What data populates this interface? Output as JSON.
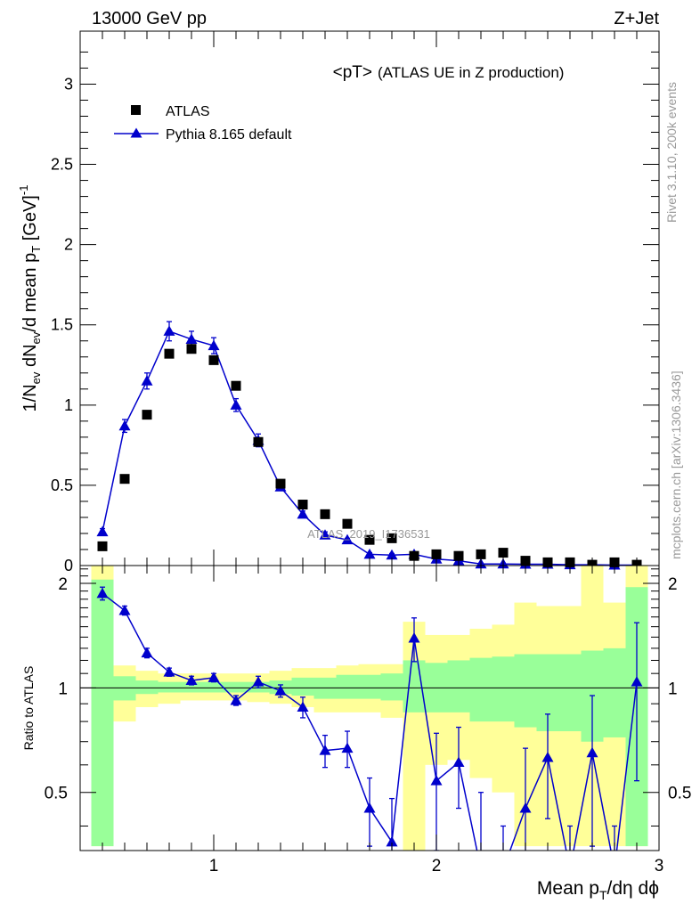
{
  "header": {
    "left": "13000 GeV pp",
    "right": "Z+Jet"
  },
  "side_text": {
    "rivet": "Rivet 3.1.10,  200k events",
    "mcplots": "mcplots.cern.ch [arXiv:1306.3436]"
  },
  "watermark": "ATLAS_2019_I1736531",
  "colors": {
    "mc": "#0000cc",
    "band_inner": "#99ff99",
    "band_outer": "#ffff99",
    "data": "#000000"
  },
  "chart_data": [
    {
      "type": "scatter",
      "title": "<pT>",
      "subtitle": "(ATLAS UE in Z production)",
      "xlabel": "Mean p_T/dη dϕ",
      "ylabel": "1/N_ev dN_ev/d mean p_T [GeV]^-1",
      "xlim": [
        0.4,
        3.0
      ],
      "ylim": [
        0,
        3.33
      ],
      "yticks": [
        0,
        0.5,
        1,
        1.5,
        2,
        2.5,
        3
      ],
      "yticks_labels": [
        "0",
        "0.5",
        "1",
        "1.5",
        "2",
        "2.5",
        "3"
      ],
      "legend_placement": "top-left",
      "series": [
        {
          "name": "ATLAS",
          "marker": "square",
          "x": [
            0.5,
            0.6,
            0.7,
            0.8,
            0.9,
            1.0,
            1.1,
            1.2,
            1.3,
            1.4,
            1.5,
            1.6,
            1.7,
            1.8,
            1.9,
            2.0,
            2.1,
            2.2,
            2.3,
            2.4,
            2.5,
            2.6,
            2.7,
            2.8,
            2.9
          ],
          "y": [
            0.12,
            0.54,
            0.94,
            1.32,
            1.35,
            1.28,
            1.12,
            0.77,
            0.51,
            0.38,
            0.32,
            0.26,
            0.16,
            0.17,
            0.06,
            0.07,
            0.06,
            0.07,
            0.08,
            0.03,
            0.02,
            0.02,
            0.005,
            0.02,
            0.005
          ]
        },
        {
          "name": "Pythia 8.165 default",
          "marker": "triangle",
          "x": [
            0.5,
            0.6,
            0.7,
            0.8,
            0.9,
            1.0,
            1.1,
            1.2,
            1.3,
            1.4,
            1.5,
            1.6,
            1.7,
            1.8,
            1.9,
            2.0,
            2.1,
            2.2,
            2.3,
            2.4,
            2.5,
            2.6,
            2.7,
            2.8,
            2.9
          ],
          "y": [
            0.21,
            0.87,
            1.15,
            1.46,
            1.41,
            1.37,
            1.0,
            0.78,
            0.49,
            0.32,
            0.19,
            0.16,
            0.07,
            0.065,
            0.07,
            0.04,
            0.03,
            0.01,
            0.01,
            0.008,
            0.008,
            0.005,
            0.005,
            0.003,
            0.003
          ],
          "err": [
            0.02,
            0.04,
            0.05,
            0.06,
            0.05,
            0.05,
            0.04,
            0.04,
            0.02,
            0.02,
            0.02,
            0.01,
            0.01,
            0.01,
            0.01,
            0.005,
            0.005,
            0.005,
            0.005,
            0.003,
            0.003,
            0.003,
            0.003,
            0.002,
            0.002
          ]
        }
      ]
    },
    {
      "type": "line",
      "ylabel": "Ratio to ATLAS",
      "xlim": [
        0.4,
        3.0
      ],
      "ylim": [
        0.34,
        2.25
      ],
      "xticks": [
        1,
        2,
        3
      ],
      "xticks_labels": [
        "1",
        "2",
        "3"
      ],
      "yticks": [
        0.5,
        1,
        2
      ],
      "yticks_labels": [
        "0.5",
        "1",
        "2"
      ],
      "bands": {
        "edges": [
          0.45,
          0.55,
          0.65,
          0.75,
          0.85,
          0.95,
          1.05,
          1.15,
          1.25,
          1.35,
          1.45,
          1.55,
          1.65,
          1.75,
          1.85,
          1.95,
          2.05,
          2.15,
          2.25,
          2.35,
          2.45,
          2.55,
          2.65,
          2.75,
          2.85,
          2.95
        ],
        "inner_lo": [
          0.35,
          0.92,
          0.96,
          0.97,
          0.97,
          0.97,
          0.97,
          0.97,
          0.96,
          0.95,
          0.93,
          0.93,
          0.93,
          0.92,
          0.85,
          0.85,
          0.85,
          0.8,
          0.8,
          0.77,
          0.75,
          0.75,
          0.7,
          0.72,
          0.35
        ],
        "inner_hi": [
          2.05,
          1.08,
          1.05,
          1.04,
          1.04,
          1.04,
          1.04,
          1.04,
          1.05,
          1.07,
          1.07,
          1.09,
          1.09,
          1.1,
          1.2,
          1.18,
          1.2,
          1.22,
          1.23,
          1.25,
          1.25,
          1.25,
          1.28,
          1.3,
          1.95
        ],
        "outer_lo": [
          0.35,
          0.8,
          0.88,
          0.9,
          0.92,
          0.92,
          0.92,
          0.91,
          0.9,
          0.88,
          0.85,
          0.85,
          0.85,
          0.82,
          0.34,
          0.6,
          0.62,
          0.55,
          0.5,
          0.35,
          0.35,
          0.35,
          0.35,
          0.35,
          0.35
        ],
        "outer_hi": [
          2.25,
          1.16,
          1.12,
          1.1,
          1.1,
          1.1,
          1.1,
          1.1,
          1.12,
          1.14,
          1.14,
          1.16,
          1.17,
          1.17,
          1.55,
          1.42,
          1.42,
          1.48,
          1.52,
          1.76,
          1.72,
          1.72,
          2.25,
          1.76,
          2.25
        ]
      },
      "series": [
        {
          "name": "Pythia 8.165 default",
          "x": [
            0.5,
            0.6,
            0.7,
            0.8,
            0.9,
            1.0,
            1.1,
            1.2,
            1.3,
            1.4,
            1.5,
            1.6,
            1.7,
            1.8,
            1.9,
            2.0,
            2.1,
            2.2,
            2.3,
            2.4,
            2.5,
            2.6,
            2.7,
            2.8,
            2.9
          ],
          "y": [
            1.87,
            1.67,
            1.26,
            1.11,
            1.05,
            1.07,
            0.92,
            1.04,
            0.98,
            0.88,
            0.66,
            0.67,
            0.45,
            0.36,
            1.39,
            0.54,
            0.61,
            0.2,
            0.1,
            0.45,
            0.63,
            0.1,
            0.65,
            0.1,
            1.04
          ],
          "err": [
            0.08,
            0.05,
            0.04,
            0.03,
            0.03,
            0.03,
            0.03,
            0.04,
            0.04,
            0.06,
            0.07,
            0.08,
            0.1,
            0.12,
            0.2,
            0.2,
            0.16,
            0.3,
            0.3,
            0.22,
            0.21,
            0.3,
            0.3,
            0.3,
            0.5
          ]
        }
      ]
    }
  ]
}
